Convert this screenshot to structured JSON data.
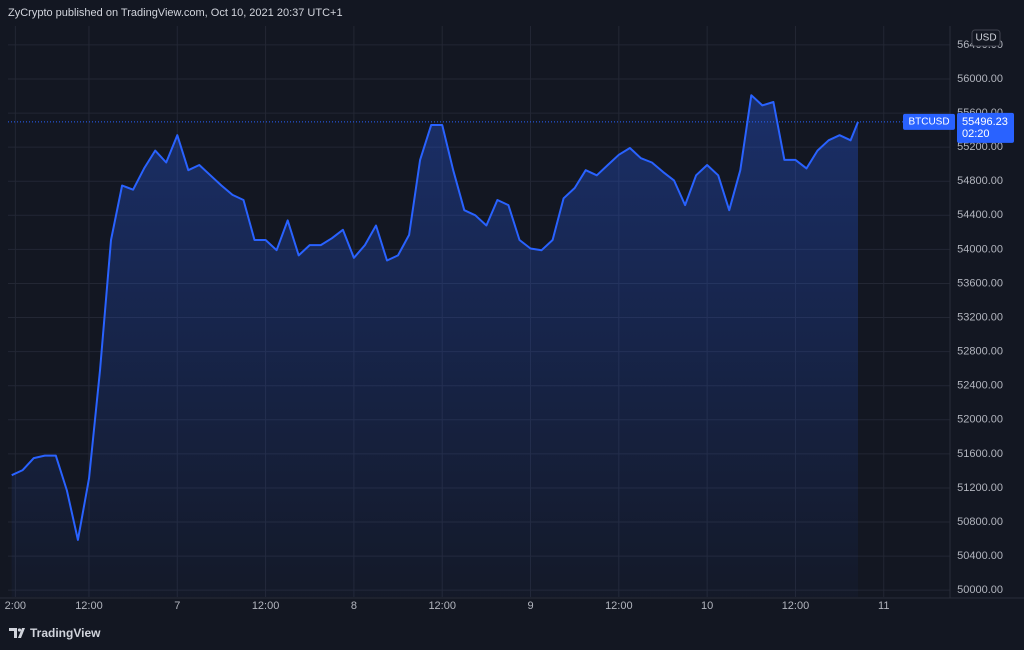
{
  "header": "ZyCrypto published on TradingView.com, Oct 10, 2021 20:37 UTC+1",
  "footer": "TradingView",
  "chart_data": {
    "type": "line",
    "currency": "USD",
    "countdown": "02:20",
    "x": [
      1.5,
      3,
      4.5,
      6,
      7.5,
      9,
      10.5,
      12,
      13.5,
      15,
      16.5,
      18,
      19.5,
      21,
      22.5,
      24,
      25.5,
      27,
      28.5,
      30,
      31.5,
      33,
      34.5,
      36,
      37.5,
      39,
      40.5,
      42,
      43.5,
      45,
      46.5,
      48,
      49.5,
      51,
      52.5,
      54,
      55.5,
      57,
      58.5,
      60,
      61.5,
      63,
      64.5,
      66,
      67.5,
      69,
      70.5,
      72,
      73.5,
      75,
      76.5,
      78,
      79.5,
      81,
      82.5,
      84,
      85.5,
      87,
      88.5,
      90,
      91.5,
      93,
      94.5,
      96,
      97.5,
      99,
      100.5,
      102,
      103.5,
      105,
      106.5,
      108,
      109.5,
      111,
      112.5,
      114,
      115.5,
      116.5
    ],
    "series": [
      {
        "name": "BTCUSD",
        "color": "#2962ff",
        "values": [
          51350,
          51410,
          51550,
          51580,
          51580,
          51170,
          50590,
          51310,
          52580,
          54110,
          54750,
          54700,
          54950,
          55160,
          55020,
          55340,
          54930,
          54990,
          54870,
          54750,
          54640,
          54580,
          54110,
          54110,
          53990,
          54340,
          53930,
          54050,
          54050,
          54130,
          54230,
          53900,
          54050,
          54280,
          53870,
          53930,
          54170,
          55050,
          55460,
          55460,
          54930,
          54460,
          54400,
          54280,
          54580,
          54520,
          54110,
          54010,
          53990,
          54110,
          54600,
          54720,
          54930,
          54870,
          54990,
          55110,
          55190,
          55070,
          55020,
          54910,
          54810,
          54520,
          54870,
          54990,
          54870,
          54460,
          54930,
          55810,
          55690,
          55730,
          55050,
          55050,
          54950,
          55160,
          55280,
          55340,
          55280,
          55496.23
        ]
      }
    ],
    "xlim": [
      1,
      129
    ],
    "xticks": [
      {
        "value": 2,
        "label": "2:00"
      },
      {
        "value": 12,
        "label": "12:00"
      },
      {
        "value": 24,
        "label": "7"
      },
      {
        "value": 36,
        "label": "12:00"
      },
      {
        "value": 48,
        "label": "8"
      },
      {
        "value": 60,
        "label": "12:00"
      },
      {
        "value": 72,
        "label": "9"
      },
      {
        "value": 84,
        "label": "12:00"
      },
      {
        "value": 96,
        "label": "10"
      },
      {
        "value": 108,
        "label": "12:00"
      },
      {
        "value": 120,
        "label": "11"
      }
    ],
    "ylim": [
      49920,
      56575
    ],
    "yticks": [
      {
        "value": 50000,
        "label": "50000.00"
      },
      {
        "value": 50400,
        "label": "50400.00"
      },
      {
        "value": 50800,
        "label": "50800.00"
      },
      {
        "value": 51200,
        "label": "51200.00"
      },
      {
        "value": 51600,
        "label": "51600.00"
      },
      {
        "value": 52000,
        "label": "52000.00"
      },
      {
        "value": 52400,
        "label": "52400.00"
      },
      {
        "value": 52800,
        "label": "52800.00"
      },
      {
        "value": 53200,
        "label": "53200.00"
      },
      {
        "value": 53600,
        "label": "53600.00"
      },
      {
        "value": 54000,
        "label": "54000.00"
      },
      {
        "value": 54400,
        "label": "54400.00"
      },
      {
        "value": 54800,
        "label": "54800.00"
      },
      {
        "value": 55200,
        "label": "55200.00"
      },
      {
        "value": 55600,
        "label": "55600.00"
      },
      {
        "value": 56000,
        "label": "56000.00"
      },
      {
        "value": 56400,
        "label": "56400.00"
      }
    ],
    "grid": true
  }
}
